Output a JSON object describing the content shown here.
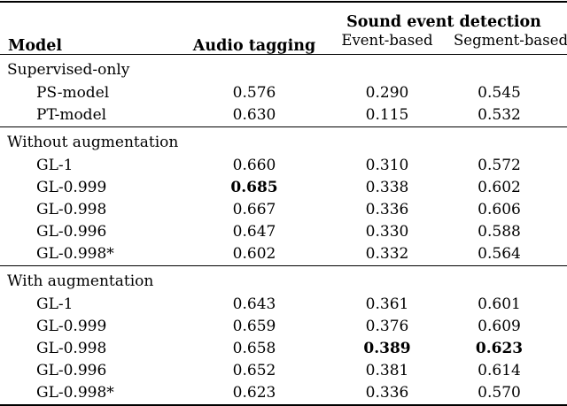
{
  "table": {
    "header": {
      "model": "Model",
      "audio_tagging": "Audio tagging",
      "sed_group": "Sound event detection",
      "event_based": "Event-based",
      "segment_based": "Segment-based"
    },
    "sections": [
      {
        "label": "Supervised-only",
        "rows": [
          {
            "model": "PS-model",
            "audio_tagging": "0.576",
            "event_based": "0.290",
            "segment_based": "0.545",
            "bold": []
          },
          {
            "model": "PT-model",
            "audio_tagging": "0.630",
            "event_based": "0.115",
            "segment_based": "0.532",
            "bold": []
          }
        ]
      },
      {
        "label": "Without augmentation",
        "rows": [
          {
            "model": "GL-1",
            "audio_tagging": "0.660",
            "event_based": "0.310",
            "segment_based": "0.572",
            "bold": []
          },
          {
            "model": "GL-0.999",
            "audio_tagging": "0.685",
            "event_based": "0.338",
            "segment_based": "0.602",
            "bold": [
              "audio_tagging"
            ]
          },
          {
            "model": "GL-0.998",
            "audio_tagging": "0.667",
            "event_based": "0.336",
            "segment_based": "0.606",
            "bold": []
          },
          {
            "model": "GL-0.996",
            "audio_tagging": "0.647",
            "event_based": "0.330",
            "segment_based": "0.588",
            "bold": []
          },
          {
            "model": "GL-0.998*",
            "audio_tagging": "0.602",
            "event_based": "0.332",
            "segment_based": "0.564",
            "bold": []
          }
        ]
      },
      {
        "label": "With augmentation",
        "rows": [
          {
            "model": "GL-1",
            "audio_tagging": "0.643",
            "event_based": "0.361",
            "segment_based": "0.601",
            "bold": []
          },
          {
            "model": "GL-0.999",
            "audio_tagging": "0.659",
            "event_based": "0.376",
            "segment_based": "0.609",
            "bold": []
          },
          {
            "model": "GL-0.998",
            "audio_tagging": "0.658",
            "event_based": "0.389",
            "segment_based": "0.623",
            "bold": [
              "event_based",
              "segment_based"
            ]
          },
          {
            "model": "GL-0.996",
            "audio_tagging": "0.652",
            "event_based": "0.381",
            "segment_based": "0.614",
            "bold": []
          },
          {
            "model": "GL-0.998*",
            "audio_tagging": "0.623",
            "event_based": "0.336",
            "segment_based": "0.570",
            "bold": []
          }
        ]
      }
    ],
    "colors": {
      "text": "#000000",
      "background": "#ffffff",
      "rule": "#000000"
    }
  }
}
